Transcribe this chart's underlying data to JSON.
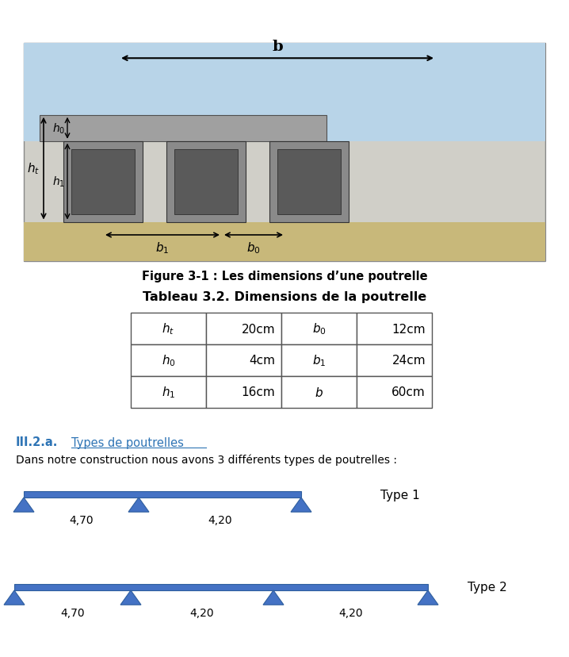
{
  "fig_caption": "Figure 3-1 : Les dimensions d’une poutrelle",
  "table_title": "Tableau 3.2. Dimensions de la poutrelle",
  "table_rows": [
    [
      "$h_t$",
      "20cm",
      "$b_0$",
      "12cm"
    ],
    [
      "$h_0$",
      "4cm",
      "$b_1$",
      "24cm"
    ],
    [
      "$h_1$",
      "16cm",
      "$b$",
      "60cm"
    ]
  ],
  "section_label": "III.2.a.",
  "section_title": "Types de poutrelles",
  "intro_text": "Dans notre construction nous avons 3 différents types de poutrelles :",
  "type1_label": "Type 1",
  "type1_spans": [
    "4,70",
    "4,20"
  ],
  "type2_label": "Type 2",
  "type2_spans": [
    "4,70",
    "4,20",
    "4,20"
  ],
  "header_blue": "#2E74B5",
  "bg_color": "#ffffff",
  "beam_color": "#4472C4",
  "beam_edge_color": "#2E5E9E"
}
